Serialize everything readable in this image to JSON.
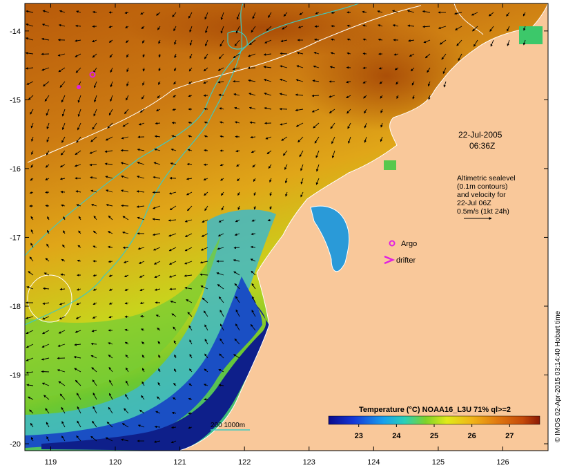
{
  "map": {
    "lon_ticks": [
      "119",
      "120",
      "121",
      "122",
      "123",
      "124",
      "125",
      "126"
    ],
    "lat_ticks": [
      "-14",
      "-15",
      "-16",
      "-17",
      "-18",
      "-19",
      "-20"
    ],
    "lon_range": [
      118.6,
      126.7
    ],
    "lat_range": [
      -13.6,
      -20.1
    ]
  },
  "timestamp": {
    "date": "22-Jul-2005",
    "time": "06:36Z"
  },
  "altimetry_note": {
    "lines": [
      "Altimetric sealevel",
      "(0.1m contours)",
      "and velocity for",
      "22-Jul 06Z",
      "0.5m/s (1kt 24h)"
    ]
  },
  "legend_markers": {
    "argo": "Argo",
    "drifter": "drifter"
  },
  "depth_legend": {
    "label": "200  1000m"
  },
  "colorbar": {
    "title": "Temperature (°C) NOAA16_L3U 71% ql>=2",
    "ticks": [
      "23",
      "24",
      "25",
      "26",
      "27"
    ],
    "range": [
      22.2,
      27.8
    ]
  },
  "credit": "© IMOS 02-Apr-2015 03:14:40 Hobart time",
  "colors": {
    "land": "#f9c89a",
    "warm": "#b85a0a",
    "cool": "#1a4fc4",
    "contour": "#ffffff",
    "bathymetry": "#3fc9c0",
    "marker": "#e020e0"
  }
}
